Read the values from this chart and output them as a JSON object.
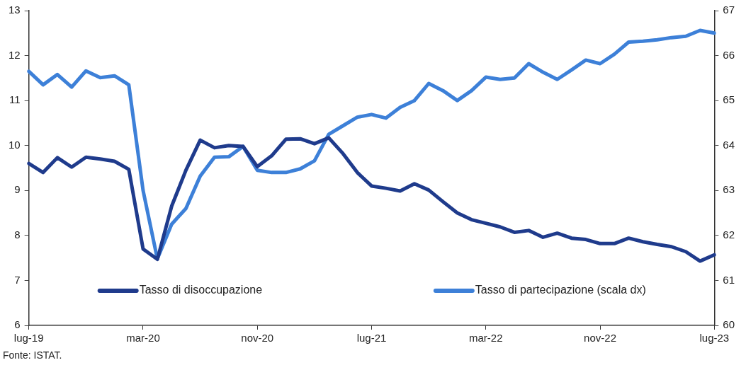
{
  "chart_data": {
    "type": "line",
    "categories": [
      "lug-19",
      null,
      null,
      null,
      null,
      null,
      null,
      null,
      "mar-20",
      null,
      null,
      null,
      null,
      null,
      null,
      null,
      "nov-20",
      null,
      null,
      null,
      null,
      null,
      null,
      null,
      "lug-21",
      null,
      null,
      null,
      null,
      null,
      null,
      null,
      "mar-22",
      null,
      null,
      null,
      null,
      null,
      null,
      null,
      "nov-22",
      null,
      null,
      null,
      null,
      null,
      null,
      null,
      "lug-23"
    ],
    "series": [
      {
        "name": "Tasso di disoccupazione",
        "color": "#1f3b8c",
        "values": [
          9.6,
          9.4,
          9.73,
          9.52,
          9.74,
          9.7,
          9.65,
          9.47,
          7.7,
          7.47,
          8.65,
          9.45,
          10.12,
          9.95,
          10.0,
          9.98,
          9.53,
          9.77,
          10.14,
          10.15,
          10.04,
          10.17,
          9.82,
          9.4,
          9.1,
          9.05,
          8.99,
          9.15,
          9.01,
          8.75,
          8.5,
          8.35,
          8.27,
          8.19,
          8.07,
          8.11,
          7.96,
          8.05,
          7.94,
          7.91,
          7.82,
          7.82,
          7.94,
          7.86,
          7.8,
          7.75,
          7.64,
          7.43,
          7.57
        ]
      },
      {
        "name": "Tasso di partecipazione (scala dx)",
        "color": "#3d80d8",
        "axis": "y2",
        "values": [
          65.65,
          65.35,
          65.58,
          65.3,
          65.66,
          65.51,
          65.55,
          65.35,
          63.0,
          61.48,
          62.25,
          62.6,
          63.32,
          63.74,
          63.75,
          63.98,
          63.45,
          63.4,
          63.4,
          63.48,
          63.66,
          64.25,
          64.44,
          64.63,
          64.69,
          64.61,
          64.85,
          65.0,
          65.38,
          65.22,
          65.0,
          65.22,
          65.52,
          65.47,
          65.5,
          65.82,
          65.63,
          65.47,
          65.68,
          65.9,
          65.82,
          66.03,
          66.3,
          66.32,
          66.35,
          66.4,
          66.43,
          66.56,
          66.5
        ]
      }
    ],
    "ylim": [
      6,
      13
    ],
    "yticks": [
      6,
      7,
      8,
      9,
      10,
      11,
      12,
      13
    ],
    "y2lim": [
      60,
      67
    ],
    "y2ticks": [
      60,
      61,
      62,
      63,
      64,
      65,
      66,
      67
    ],
    "grid": false,
    "legend": "bottom",
    "marker": "none",
    "line_style": "solid",
    "annotations": [
      "Fonte: ISTAT."
    ]
  }
}
